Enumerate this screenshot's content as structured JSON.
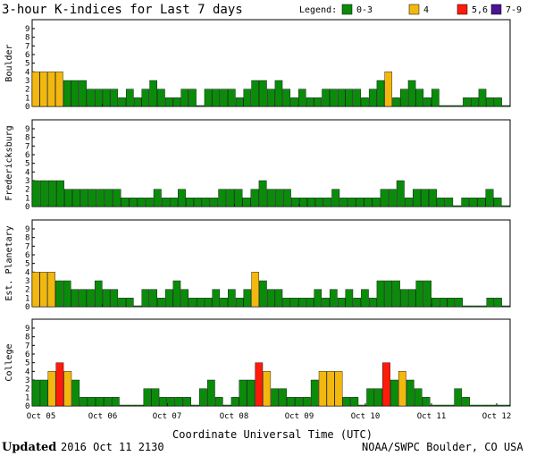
{
  "title": "3-hour K-indices for Last 7 days",
  "legend": {
    "label": "Legend:",
    "items": [
      {
        "label": "0-3",
        "color": "#0a8c0a"
      },
      {
        "label": "4",
        "color": "#f2b80f"
      },
      {
        "label": "5,6",
        "color": "#ff1a0a"
      },
      {
        "label": "7-9",
        "color": "#4b1496"
      }
    ]
  },
  "footer": {
    "updated_label": "Updated",
    "updated_value": "2016 Oct 11 2130",
    "credit": "NOAA/SWPC Boulder, CO USA"
  },
  "chart_data": [
    {
      "type": "bar",
      "ylabel": "Boulder",
      "ylim": [
        0,
        9
      ],
      "yticks": [
        "0",
        "1",
        "2",
        "3",
        "4",
        "5",
        "6",
        "7",
        "8",
        "9"
      ],
      "x_ticks": [
        "Oct 05",
        "Oct 06",
        "Oct 07",
        "Oct 08",
        "Oct 09",
        "Oct 10",
        "Oct 11",
        "Oct 12"
      ],
      "xlabel": "Coordinate Universal Time (UTC)",
      "values": [
        4,
        4,
        4,
        4,
        3,
        3,
        3,
        2,
        2,
        2,
        2,
        1,
        2,
        1,
        2,
        3,
        2,
        1,
        1,
        2,
        2,
        0,
        2,
        2,
        2,
        2,
        1,
        2,
        3,
        3,
        2,
        3,
        2,
        1,
        2,
        1,
        1,
        2,
        2,
        2,
        2,
        2,
        1,
        2,
        3,
        4,
        1,
        2,
        3,
        2,
        1,
        2,
        0,
        0,
        0,
        1,
        1,
        2,
        1,
        1,
        0
      ]
    },
    {
      "type": "bar",
      "ylabel": "Fredericksburg",
      "ylim": [
        0,
        9
      ],
      "yticks": [
        "0",
        "1",
        "2",
        "3",
        "4",
        "5",
        "6",
        "7",
        "8",
        "9"
      ],
      "x_ticks": [
        "Oct 05",
        "Oct 06",
        "Oct 07",
        "Oct 08",
        "Oct 09",
        "Oct 10",
        "Oct 11",
        "Oct 12"
      ],
      "values": [
        3,
        3,
        3,
        3,
        2,
        2,
        2,
        2,
        2,
        2,
        2,
        1,
        1,
        1,
        1,
        2,
        1,
        1,
        2,
        1,
        1,
        1,
        1,
        2,
        2,
        2,
        1,
        2,
        3,
        2,
        2,
        2,
        1,
        1,
        1,
        1,
        1,
        2,
        1,
        1,
        1,
        1,
        1,
        2,
        2,
        3,
        1,
        2,
        2,
        2,
        1,
        1,
        0,
        1,
        1,
        1,
        2,
        1,
        0
      ]
    },
    {
      "type": "bar",
      "ylabel": "Est. Planetary",
      "ylim": [
        0,
        9
      ],
      "yticks": [
        "0",
        "1",
        "2",
        "3",
        "4",
        "5",
        "6",
        "7",
        "8",
        "9"
      ],
      "x_ticks": [
        "Oct 05",
        "Oct 06",
        "Oct 07",
        "Oct 08",
        "Oct 09",
        "Oct 10",
        "Oct 11",
        "Oct 12"
      ],
      "values": [
        4,
        4,
        4,
        3,
        3,
        2,
        2,
        2,
        3,
        2,
        2,
        1,
        1,
        0,
        2,
        2,
        1,
        2,
        3,
        2,
        1,
        1,
        1,
        2,
        1,
        2,
        1,
        2,
        4,
        3,
        2,
        2,
        1,
        1,
        1,
        1,
        2,
        1,
        2,
        1,
        2,
        1,
        2,
        1,
        3,
        3,
        3,
        2,
        2,
        3,
        3,
        1,
        1,
        1,
        1,
        0,
        0,
        0,
        1,
        1,
        0
      ]
    },
    {
      "type": "bar",
      "ylabel": "College",
      "ylim": [
        0,
        9
      ],
      "yticks": [
        "0",
        "1",
        "2",
        "3",
        "4",
        "5",
        "6",
        "7",
        "8",
        "9"
      ],
      "x_ticks": [
        "Oct 05",
        "Oct 06",
        "Oct 07",
        "Oct 08",
        "Oct 09",
        "Oct 10",
        "Oct 11",
        "Oct 12"
      ],
      "values": [
        3,
        3,
        4,
        5,
        4,
        3,
        1,
        1,
        1,
        1,
        1,
        0,
        0,
        0,
        2,
        2,
        1,
        1,
        1,
        1,
        0,
        2,
        3,
        1,
        0,
        1,
        3,
        3,
        5,
        4,
        2,
        2,
        1,
        1,
        1,
        3,
        4,
        4,
        4,
        1,
        1,
        0,
        2,
        2,
        5,
        3,
        4,
        3,
        2,
        1,
        0,
        0,
        0,
        2,
        1,
        0,
        0,
        0,
        0,
        0
      ]
    }
  ]
}
